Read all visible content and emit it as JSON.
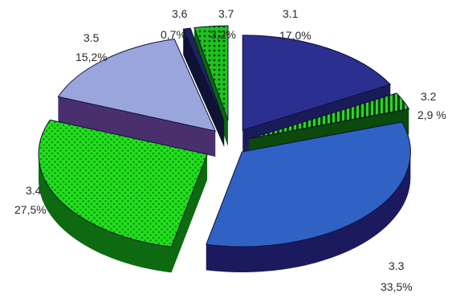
{
  "chart_data": {
    "type": "pie",
    "title": "",
    "categories": [
      "3.1",
      "3.2",
      "3.3",
      "3.4",
      "3.5",
      "3.6",
      "3.7"
    ],
    "values": [
      17.0,
      2.9,
      33.5,
      27.5,
      15.2,
      0.7,
      3.2
    ],
    "value_labels": [
      "17,0%",
      "2,9 %",
      "33,5%",
      "27,5%",
      "15,2%",
      "0,7%",
      "3,2%"
    ],
    "legend": "none",
    "style": "3d-exploded",
    "colors": {
      "3.1": "#2b2f8f",
      "3.2": "#1e8f1e",
      "3.3": "#2f62c4",
      "3.4": "#22e01c",
      "3.5": "#9aa6db",
      "3.6": "#1f2260",
      "3.7": "#1fc31f"
    }
  }
}
